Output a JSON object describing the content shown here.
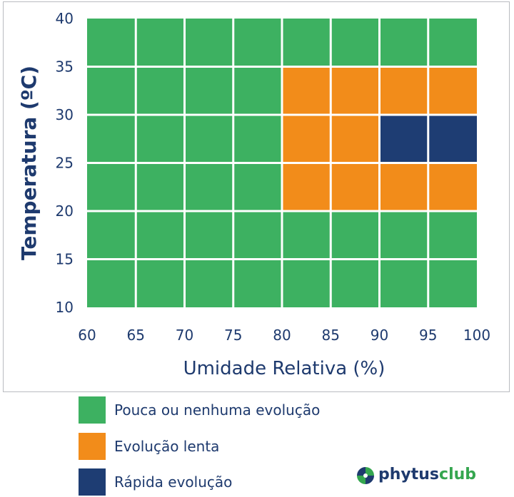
{
  "chart_data": {
    "type": "heatmap",
    "xlabel": "Umidade Relativa (%)",
    "ylabel": "Temperatura (ºC)",
    "x_ticks": [
      "60",
      "65",
      "70",
      "75",
      "80",
      "85",
      "90",
      "95",
      "100"
    ],
    "y_ticks": [
      "10",
      "15",
      "20",
      "25",
      "30",
      "35",
      "40"
    ],
    "x_bins": [
      60,
      65,
      70,
      75,
      80,
      85,
      90,
      95,
      100
    ],
    "y_bins": [
      10,
      15,
      20,
      25,
      30,
      35,
      40
    ],
    "rows_top_to_bottom": [
      {
        "temperature_range": [
          35,
          40
        ],
        "cells": [
          0,
          0,
          0,
          0,
          0,
          0,
          0,
          0
        ]
      },
      {
        "temperature_range": [
          30,
          35
        ],
        "cells": [
          0,
          0,
          0,
          0,
          1,
          1,
          1,
          1
        ]
      },
      {
        "temperature_range": [
          25,
          30
        ],
        "cells": [
          0,
          0,
          0,
          0,
          1,
          1,
          2,
          2
        ]
      },
      {
        "temperature_range": [
          20,
          25
        ],
        "cells": [
          0,
          0,
          0,
          0,
          1,
          1,
          1,
          1
        ]
      },
      {
        "temperature_range": [
          15,
          20
        ],
        "cells": [
          0,
          0,
          0,
          0,
          0,
          0,
          0,
          0
        ]
      },
      {
        "temperature_range": [
          10,
          15
        ],
        "cells": [
          0,
          0,
          0,
          0,
          0,
          0,
          0,
          0
        ]
      }
    ],
    "categories": [
      {
        "id": 0,
        "label": "Pouca ou nenhuma evolução",
        "color": "#3db161"
      },
      {
        "id": 1,
        "label": "Evolução lenta",
        "color": "#f28c1a"
      },
      {
        "id": 2,
        "label": "Rápida evolução",
        "color": "#1e3d73"
      }
    ],
    "grid": true,
    "legend_position": "bottom-left"
  },
  "logo": {
    "part1": "phytus",
    "part2": "club"
  },
  "colors": {
    "text": "#1e3a6e",
    "green": "#3db161",
    "orange": "#f28c1a",
    "navy": "#1e3d73"
  }
}
